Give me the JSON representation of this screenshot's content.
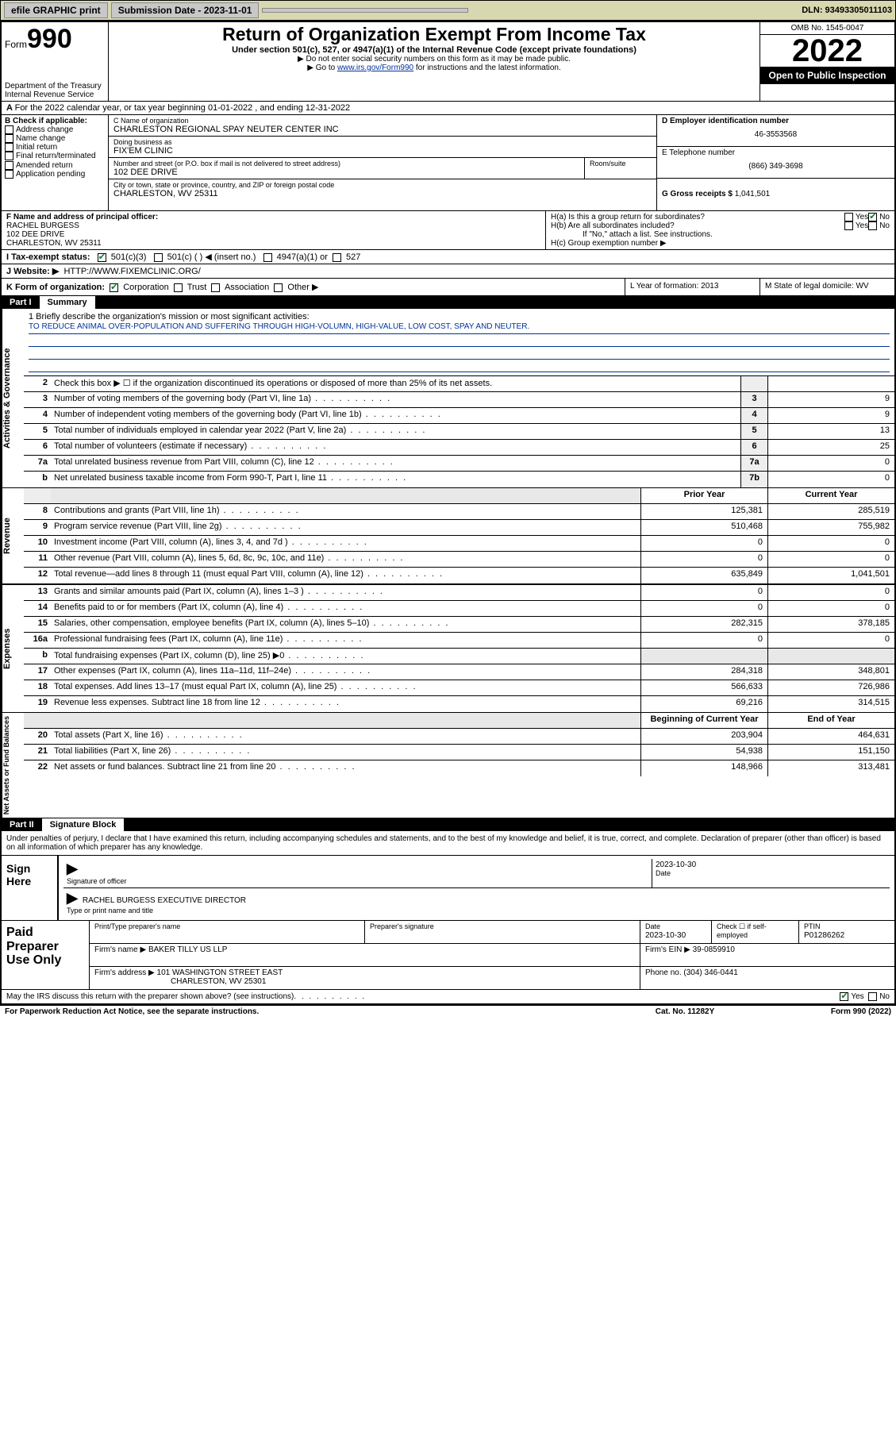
{
  "topbar": {
    "efile": "efile GRAPHIC print",
    "submission_label": "Submission Date - 2023-11-01",
    "dln_label": "DLN: 93493305011103"
  },
  "header": {
    "form_word": "Form",
    "form_num": "990",
    "dept": "Department of the Treasury",
    "irs": "Internal Revenue Service",
    "title": "Return of Organization Exempt From Income Tax",
    "sub": "Under section 501(c), 527, or 4947(a)(1) of the Internal Revenue Code (except private foundations)",
    "warn": "▶ Do not enter social security numbers on this form as it may be made public.",
    "goto_pre": "▶ Go to ",
    "goto_link": "www.irs.gov/Form990",
    "goto_post": " for instructions and the latest information.",
    "omb": "OMB No. 1545-0047",
    "year": "2022",
    "open": "Open to Public Inspection"
  },
  "a_line": "For the 2022 calendar year, or tax year beginning 01-01-2022   , and ending 12-31-2022",
  "b": {
    "label": "B Check if applicable:",
    "opts": [
      "Address change",
      "Name change",
      "Initial return",
      "Final return/terminated",
      "Amended return",
      "Application pending"
    ]
  },
  "c": {
    "name_label": "C Name of organization",
    "name": "CHARLESTON REGIONAL SPAY NEUTER CENTER INC",
    "dba_label": "Doing business as",
    "dba": "FIX'EM CLINIC",
    "street_label": "Number and street (or P.O. box if mail is not delivered to street address)",
    "room_label": "Room/suite",
    "street": "102 DEE DRIVE",
    "city_label": "City or town, state or province, country, and ZIP or foreign postal code",
    "city": "CHARLESTON, WV  25311"
  },
  "d": {
    "label": "D Employer identification number",
    "val": "46-3553568"
  },
  "e": {
    "label": "E Telephone number",
    "val": "(866) 349-3698"
  },
  "g": {
    "label": "G Gross receipts $",
    "val": "1,041,501"
  },
  "f": {
    "label": "F  Name and address of principal officer:",
    "name": "RACHEL BURGESS",
    "street": "102 DEE DRIVE",
    "city": "CHARLESTON, WV  25311"
  },
  "h": {
    "a": "H(a)  Is this a group return for subordinates?",
    "b": "H(b)  Are all subordinates included?",
    "note": "If \"No,\" attach a list. See instructions.",
    "c": "H(c)  Group exemption number ▶"
  },
  "i": {
    "label": "I      Tax-exempt status:",
    "o1": "501(c)(3)",
    "o2": "501(c) (  ) ◀ (insert no.)",
    "o3": "4947(a)(1) or",
    "o4": "527"
  },
  "j": {
    "label": "J      Website: ▶",
    "val": "HTTP://WWW.FIXEMCLINIC.ORG/"
  },
  "k": {
    "label": "K Form of organization:",
    "o1": "Corporation",
    "o2": "Trust",
    "o3": "Association",
    "o4": "Other ▶"
  },
  "l": {
    "label": "L Year of formation: 2013"
  },
  "m": {
    "label": "M State of legal domicile: WV"
  },
  "part1": {
    "num": "Part I",
    "title": "Summary"
  },
  "mission": {
    "q": "1   Briefly describe the organization's mission or most significant activities:",
    "text": "TO REDUCE ANIMAL OVER-POPULATION AND SUFFERING THROUGH HIGH-VOLUMN, HIGH-VALUE, LOW COST, SPAY AND NEUTER."
  },
  "gov_lines": [
    {
      "n": "2",
      "d": "Check this box ▶ ☐  if the organization discontinued its operations or disposed of more than 25% of its net assets.",
      "box": "",
      "v": ""
    },
    {
      "n": "3",
      "d": "Number of voting members of the governing body (Part VI, line 1a)",
      "box": "3",
      "v": "9"
    },
    {
      "n": "4",
      "d": "Number of independent voting members of the governing body (Part VI, line 1b)",
      "box": "4",
      "v": "9"
    },
    {
      "n": "5",
      "d": "Total number of individuals employed in calendar year 2022 (Part V, line 2a)",
      "box": "5",
      "v": "13"
    },
    {
      "n": "6",
      "d": "Total number of volunteers (estimate if necessary)",
      "box": "6",
      "v": "25"
    },
    {
      "n": "7a",
      "d": "Total unrelated business revenue from Part VIII, column (C), line 12",
      "box": "7a",
      "v": "0"
    },
    {
      "n": "b",
      "d": "Net unrelated business taxable income from Form 990-T, Part I, line 11",
      "box": "7b",
      "v": "0"
    }
  ],
  "col_hdr": {
    "prior": "Prior Year",
    "current": "Current Year",
    "boy": "Beginning of Current Year",
    "eoy": "End of Year"
  },
  "rev_lines": [
    {
      "n": "8",
      "d": "Contributions and grants (Part VIII, line 1h)",
      "p": "125,381",
      "c": "285,519"
    },
    {
      "n": "9",
      "d": "Program service revenue (Part VIII, line 2g)",
      "p": "510,468",
      "c": "755,982"
    },
    {
      "n": "10",
      "d": "Investment income (Part VIII, column (A), lines 3, 4, and 7d )",
      "p": "0",
      "c": "0"
    },
    {
      "n": "11",
      "d": "Other revenue (Part VIII, column (A), lines 5, 6d, 8c, 9c, 10c, and 11e)",
      "p": "0",
      "c": "0"
    },
    {
      "n": "12",
      "d": "Total revenue—add lines 8 through 11 (must equal Part VIII, column (A), line 12)",
      "p": "635,849",
      "c": "1,041,501"
    }
  ],
  "exp_lines": [
    {
      "n": "13",
      "d": "Grants and similar amounts paid (Part IX, column (A), lines 1–3 )",
      "p": "0",
      "c": "0"
    },
    {
      "n": "14",
      "d": "Benefits paid to or for members (Part IX, column (A), line 4)",
      "p": "0",
      "c": "0"
    },
    {
      "n": "15",
      "d": "Salaries, other compensation, employee benefits (Part IX, column (A), lines 5–10)",
      "p": "282,315",
      "c": "378,185"
    },
    {
      "n": "16a",
      "d": "Professional fundraising fees (Part IX, column (A), line 11e)",
      "p": "0",
      "c": "0"
    },
    {
      "n": "b",
      "d": "Total fundraising expenses (Part IX, column (D), line 25) ▶0",
      "p": "",
      "c": "",
      "shade": true
    },
    {
      "n": "17",
      "d": "Other expenses (Part IX, column (A), lines 11a–11d, 11f–24e)",
      "p": "284,318",
      "c": "348,801"
    },
    {
      "n": "18",
      "d": "Total expenses. Add lines 13–17 (must equal Part IX, column (A), line 25)",
      "p": "566,633",
      "c": "726,986"
    },
    {
      "n": "19",
      "d": "Revenue less expenses. Subtract line 18 from line 12",
      "p": "69,216",
      "c": "314,515"
    }
  ],
  "na_lines": [
    {
      "n": "20",
      "d": "Total assets (Part X, line 16)",
      "p": "203,904",
      "c": "464,631"
    },
    {
      "n": "21",
      "d": "Total liabilities (Part X, line 26)",
      "p": "54,938",
      "c": "151,150"
    },
    {
      "n": "22",
      "d": "Net assets or fund balances. Subtract line 21 from line 20",
      "p": "148,966",
      "c": "313,481"
    }
  ],
  "side": {
    "gov": "Activities & Governance",
    "rev": "Revenue",
    "exp": "Expenses",
    "na": "Net Assets or Fund Balances"
  },
  "part2": {
    "num": "Part II",
    "title": "Signature Block"
  },
  "sig_intro": "Under penalties of perjury, I declare that I have examined this return, including accompanying schedules and statements, and to the best of my knowledge and belief, it is true, correct, and complete. Declaration of preparer (other than officer) is based on all information of which preparer has any knowledge.",
  "sign": {
    "here": "Sign Here",
    "sig_label": "Signature of officer",
    "date_label": "Date",
    "date": "2023-10-30",
    "name": "RACHEL BURGESS  EXECUTIVE DIRECTOR",
    "name_label": "Type or print name and title"
  },
  "prep": {
    "title": "Paid Preparer Use Only",
    "h1": "Print/Type preparer's name",
    "h2": "Preparer's signature",
    "h3": "Date",
    "h3v": "2023-10-30",
    "h4": "Check ☐ if self-employed",
    "h5": "PTIN",
    "h5v": "P01286262",
    "firm_label": "Firm's name    ▶",
    "firm": "BAKER TILLY US LLP",
    "ein_label": "Firm's EIN ▶",
    "ein": "39-0859910",
    "addr_label": "Firm's address ▶",
    "addr1": "101 WASHINGTON STREET EAST",
    "addr2": "CHARLESTON, WV  25301",
    "phone_label": "Phone no.",
    "phone": "(304) 346-0441"
  },
  "discuss": "May the IRS discuss this return with the preparer shown above? (see instructions)",
  "footer": {
    "l": "For Paperwork Reduction Act Notice, see the separate instructions.",
    "m": "Cat. No. 11282Y",
    "r": "Form 990 (2022)"
  },
  "yesno": {
    "yes": "Yes",
    "no": "No"
  }
}
